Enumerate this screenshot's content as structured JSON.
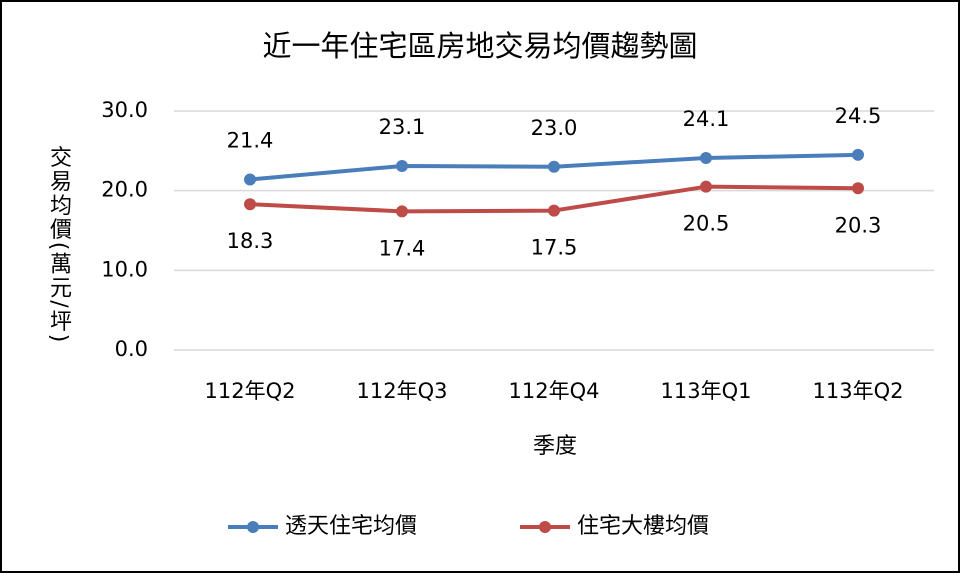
{
  "chart_data": {
    "type": "line",
    "title": "近一年住宅區房地交易均價趨勢圖",
    "x_label": "季度",
    "y_label": "交易均價(萬元/坪)",
    "categories": [
      "112年Q2",
      "112年Q3",
      "112年Q4",
      "113年Q1",
      "113年Q2"
    ],
    "series": [
      {
        "name": "透天住宅均價",
        "color": "#4a7ebb",
        "values": [
          21.4,
          23.1,
          23.0,
          24.1,
          24.5
        ],
        "value_labels": [
          "21.4",
          "23.1",
          "23.0",
          "24.1",
          "24.5"
        ]
      },
      {
        "name": "住宅大樓均價",
        "color": "#be4b48",
        "values": [
          18.3,
          17.4,
          17.5,
          20.5,
          20.3
        ],
        "value_labels": [
          "18.3",
          "17.4",
          "17.5",
          "20.5",
          "20.3"
        ]
      }
    ],
    "ylim": [
      0,
      30
    ],
    "yticks": [
      {
        "value": 0,
        "label": "0.0"
      },
      {
        "value": 10,
        "label": "10.0"
      },
      {
        "value": 20,
        "label": "20.0"
      },
      {
        "value": 30,
        "label": "30.0"
      }
    ],
    "grid": true,
    "legend": "bottom"
  }
}
